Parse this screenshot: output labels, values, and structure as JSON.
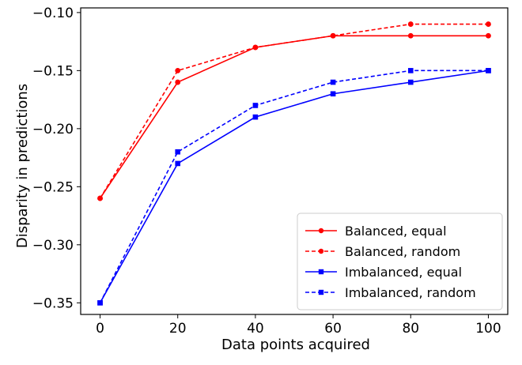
{
  "chart_data": {
    "type": "line",
    "xlabel": "Data points acquired",
    "ylabel": "Disparity in predictions",
    "x": [
      0,
      20,
      40,
      60,
      80,
      100
    ],
    "xlim": [
      -5,
      105
    ],
    "ylim": [
      -0.36,
      -0.096
    ],
    "xticks": [
      0,
      20,
      40,
      60,
      80,
      100
    ],
    "yticks": [
      -0.35,
      -0.3,
      -0.25,
      -0.2,
      -0.15,
      -0.1
    ],
    "xtick_labels": [
      "0",
      "20",
      "40",
      "60",
      "80",
      "100"
    ],
    "ytick_labels": [
      "−0.35",
      "−0.30",
      "−0.25",
      "−0.20",
      "−0.15",
      "−0.10"
    ],
    "grid": false,
    "legend_position": "lower-right",
    "series": [
      {
        "name": "Balanced, equal",
        "color": "#ff0000",
        "linestyle": "solid",
        "marker": "circle",
        "values": [
          -0.26,
          -0.16,
          -0.13,
          -0.12,
          -0.12,
          -0.12
        ]
      },
      {
        "name": "Balanced, random",
        "color": "#ff0000",
        "linestyle": "dashed",
        "marker": "circle",
        "values": [
          -0.26,
          -0.15,
          -0.13,
          -0.12,
          -0.11,
          -0.11
        ]
      },
      {
        "name": "Imbalanced, equal",
        "color": "#0000ff",
        "linestyle": "solid",
        "marker": "square",
        "values": [
          -0.35,
          -0.23,
          -0.19,
          -0.17,
          -0.16,
          -0.15
        ]
      },
      {
        "name": "Imbalanced, random",
        "color": "#0000ff",
        "linestyle": "dashed",
        "marker": "square",
        "values": [
          -0.35,
          -0.22,
          -0.18,
          -0.16,
          -0.15,
          -0.15
        ]
      }
    ]
  }
}
